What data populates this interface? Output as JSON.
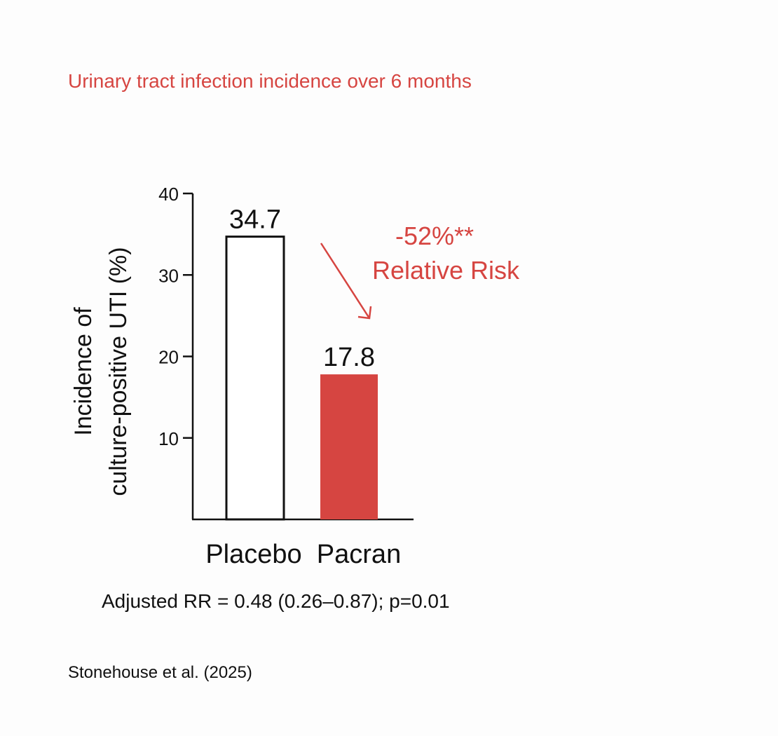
{
  "colors": {
    "accent": "#d64541",
    "text": "#111111",
    "background": "#fdfdfd",
    "placebo_fill": "#ffffff",
    "pacran_fill": "#d64541"
  },
  "chart_data": {
    "type": "bar",
    "title": "Urinary tract infection incidence over 6 months",
    "xlabel": "",
    "ylabel": [
      "Incidence of",
      "culture-positive UTI (%)"
    ],
    "categories": [
      "Placebo",
      "Pacran"
    ],
    "values": [
      34.7,
      17.8
    ],
    "value_labels": [
      "34.7",
      "17.8"
    ],
    "yticks": [
      10,
      20,
      30,
      40
    ],
    "ylim": [
      0,
      40
    ],
    "grid": false,
    "legend": "none",
    "annotation": {
      "line1": "-52%**",
      "line2": "Relative Risk"
    },
    "footnote": "Adjusted RR = 0.48 (0.26–0.87); p=0.01",
    "source": "Stonehouse et al. (2025)"
  }
}
